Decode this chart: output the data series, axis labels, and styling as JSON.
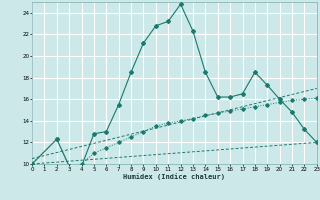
{
  "xlabel": "Humidex (Indice chaleur)",
  "background_color": "#cce8e8",
  "grid_color": "#ffffff",
  "line_color": "#1a7a6e",
  "xlim": [
    0,
    23
  ],
  "ylim": [
    10,
    25
  ],
  "xticks": [
    0,
    1,
    2,
    3,
    4,
    5,
    6,
    7,
    8,
    9,
    10,
    11,
    12,
    13,
    14,
    15,
    16,
    17,
    18,
    19,
    20,
    21,
    22,
    23
  ],
  "yticks": [
    10,
    12,
    14,
    16,
    18,
    20,
    22,
    24
  ],
  "line1_x": [
    0,
    2,
    3,
    4,
    5,
    6,
    7,
    8,
    9,
    10,
    11,
    12,
    13,
    14,
    15,
    16,
    17,
    18,
    19,
    20,
    21,
    22,
    23
  ],
  "line1_y": [
    10.0,
    12.3,
    9.8,
    9.8,
    12.8,
    13.0,
    15.5,
    18.5,
    21.2,
    22.8,
    23.2,
    24.8,
    22.3,
    18.5,
    16.2,
    16.2,
    16.5,
    18.5,
    17.3,
    16.0,
    14.8,
    13.2,
    12.0
  ],
  "line2_x": [
    0,
    2,
    3,
    4,
    5,
    6,
    7,
    8,
    9,
    10,
    11,
    12,
    13,
    14,
    15,
    16,
    17,
    18,
    19,
    20,
    21,
    22,
    23
  ],
  "line2_y": [
    10.0,
    12.3,
    9.8,
    10.0,
    11.0,
    11.5,
    12.0,
    12.5,
    13.0,
    13.5,
    13.8,
    14.0,
    14.2,
    14.5,
    14.7,
    14.9,
    15.1,
    15.3,
    15.5,
    15.7,
    15.9,
    16.0,
    16.1
  ],
  "line3_x": [
    0,
    23
  ],
  "line3_y": [
    10.0,
    12.0
  ],
  "line4_x": [
    0,
    23
  ],
  "line4_y": [
    10.5,
    17.0
  ]
}
